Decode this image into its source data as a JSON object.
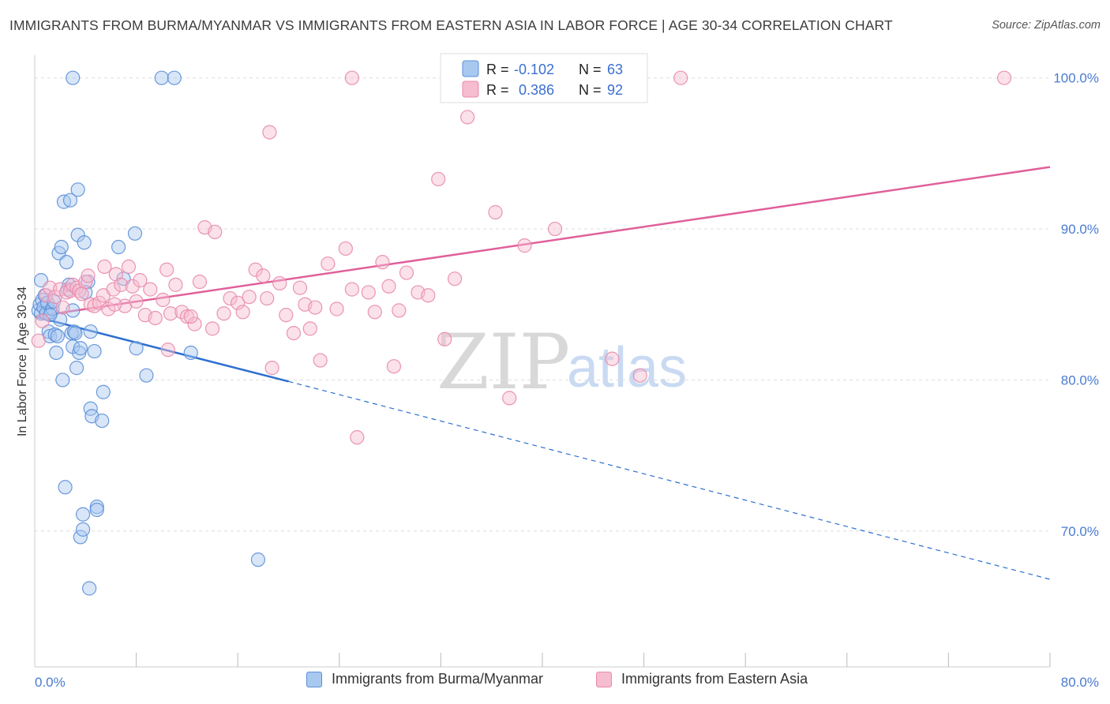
{
  "title": "IMMIGRANTS FROM BURMA/MYANMAR VS IMMIGRANTS FROM EASTERN ASIA IN LABOR FORCE | AGE 30-34 CORRELATION CHART",
  "source": "Source: ZipAtlas.com",
  "watermark": {
    "zip": "ZIP",
    "atlas": "atlas"
  },
  "colors": {
    "burma_fill": "#a9c8f0",
    "burma_stroke": "#5b8fd8",
    "burma_line": "#2d6fcf",
    "easia_fill": "#f6bcd0",
    "easia_stroke": "#e88aab",
    "easia_line": "#e0609a",
    "grid": "#dddddd",
    "axis_text": "#4a7bd1"
  },
  "legend": {
    "rows": [
      {
        "r_label": "R =",
        "r_value": "-0.102",
        "n_label": "N =",
        "n_value": "63"
      },
      {
        "r_label": "R =",
        "r_value": "0.386",
        "n_label": "N =",
        "n_value": "92"
      }
    ]
  },
  "bottom_legend": {
    "items": [
      {
        "label": "Immigrants from Burma/Myanmar"
      },
      {
        "label": "Immigrants from Eastern Asia"
      }
    ]
  },
  "chart_data": {
    "type": "scatter",
    "title": "IMMIGRANTS FROM BURMA/MYANMAR VS IMMIGRANTS FROM EASTERN ASIA IN LABOR FORCE | AGE 30-34 CORRELATION CHART",
    "ylabel": "In Labor Force | Age 30-34",
    "xlabel": "",
    "xlim": [
      0,
      80
    ],
    "ylim": [
      61,
      101.5
    ],
    "x_tick_labels": [
      {
        "value": 0,
        "label": "0.0%"
      },
      {
        "value": 80,
        "label": "80.0%"
      }
    ],
    "x_minor_ticks": [
      8,
      16,
      24,
      32,
      40,
      48,
      56,
      64,
      72
    ],
    "y_ticks": [
      {
        "value": 70,
        "label": "70.0%"
      },
      {
        "value": 80,
        "label": "80.0%"
      },
      {
        "value": 90,
        "label": "90.0%"
      },
      {
        "value": 100,
        "label": "100.0%"
      }
    ],
    "grid": true,
    "series": [
      {
        "name": "Immigrants from Burma/Myanmar",
        "stats": {
          "R": -0.102,
          "N": 63
        },
        "trend": {
          "x_start": 0,
          "y_start": 84.2,
          "x_solid_end": 20,
          "y_solid_end": 79.9,
          "x_end": 80,
          "y_end": 66.8
        },
        "points": [
          [
            0.3,
            84.6
          ],
          [
            0.4,
            85.0
          ],
          [
            0.5,
            84.4
          ],
          [
            0.5,
            86.6
          ],
          [
            0.6,
            85.3
          ],
          [
            0.7,
            84.8
          ],
          [
            0.8,
            85.6
          ],
          [
            0.9,
            84.4
          ],
          [
            1.0,
            85.1
          ],
          [
            1.1,
            83.2
          ],
          [
            1.2,
            82.9
          ],
          [
            1.3,
            84.5
          ],
          [
            1.4,
            84.7
          ],
          [
            1.5,
            85.2
          ],
          [
            1.6,
            83.0
          ],
          [
            1.7,
            81.8
          ],
          [
            1.8,
            82.9
          ],
          [
            2.0,
            84.0
          ],
          [
            1.9,
            88.4
          ],
          [
            2.1,
            88.8
          ],
          [
            2.2,
            80.0
          ],
          [
            2.3,
            91.8
          ],
          [
            2.5,
            87.8
          ],
          [
            2.8,
            91.9
          ],
          [
            2.6,
            86.0
          ],
          [
            2.7,
            86.3
          ],
          [
            2.9,
            83.1
          ],
          [
            3.0,
            82.2
          ],
          [
            3.0,
            84.6
          ],
          [
            3.1,
            83.2
          ],
          [
            3.2,
            83.1
          ],
          [
            3.3,
            80.8
          ],
          [
            3.4,
            89.6
          ],
          [
            3.4,
            92.6
          ],
          [
            3.5,
            81.8
          ],
          [
            3.6,
            82.1
          ],
          [
            3.9,
            89.1
          ],
          [
            4.2,
            86.5
          ],
          [
            4.4,
            83.2
          ],
          [
            4.4,
            78.1
          ],
          [
            4.5,
            77.6
          ],
          [
            4.7,
            81.9
          ],
          [
            4.9,
            71.6
          ],
          [
            4.9,
            71.4
          ],
          [
            5.3,
            77.3
          ],
          [
            5.4,
            79.2
          ],
          [
            3.8,
            71.1
          ],
          [
            3.6,
            69.6
          ],
          [
            3.8,
            70.1
          ],
          [
            4.3,
            66.2
          ],
          [
            2.4,
            72.9
          ],
          [
            3.0,
            100.0
          ],
          [
            6.6,
            88.8
          ],
          [
            7.0,
            86.7
          ],
          [
            7.9,
            89.7
          ],
          [
            8.0,
            82.1
          ],
          [
            8.8,
            80.3
          ],
          [
            10.0,
            100.0
          ],
          [
            11.0,
            100.0
          ],
          [
            12.3,
            81.8
          ],
          [
            17.6,
            68.1
          ],
          [
            4.0,
            85.8
          ],
          [
            1.2,
            84.3
          ]
        ]
      },
      {
        "name": "Immigrants from Eastern Asia",
        "stats": {
          "R": 0.386,
          "N": 92
        },
        "trend": {
          "x_start": 0,
          "y_start": 84.2,
          "x_end": 80,
          "y_end": 94.1
        },
        "points": [
          [
            0.3,
            82.6
          ],
          [
            0.6,
            83.9
          ],
          [
            0.9,
            85.6
          ],
          [
            1.2,
            86.1
          ],
          [
            1.6,
            85.5
          ],
          [
            2.0,
            86.0
          ],
          [
            2.2,
            84.8
          ],
          [
            2.5,
            85.8
          ],
          [
            2.8,
            85.9
          ],
          [
            3.0,
            86.3
          ],
          [
            3.3,
            86.1
          ],
          [
            3.5,
            85.9
          ],
          [
            3.7,
            85.7
          ],
          [
            4.0,
            86.5
          ],
          [
            4.2,
            86.9
          ],
          [
            4.4,
            85.0
          ],
          [
            4.7,
            84.9
          ],
          [
            5.1,
            85.1
          ],
          [
            5.4,
            85.6
          ],
          [
            5.5,
            87.5
          ],
          [
            5.8,
            84.7
          ],
          [
            6.2,
            86.0
          ],
          [
            6.4,
            87.0
          ],
          [
            6.8,
            86.3
          ],
          [
            7.1,
            84.9
          ],
          [
            7.4,
            87.5
          ],
          [
            7.7,
            86.2
          ],
          [
            8.0,
            85.2
          ],
          [
            8.3,
            86.6
          ],
          [
            8.7,
            84.3
          ],
          [
            9.1,
            86.0
          ],
          [
            9.5,
            84.1
          ],
          [
            10.1,
            85.3
          ],
          [
            10.4,
            87.3
          ],
          [
            10.7,
            84.4
          ],
          [
            11.1,
            86.3
          ],
          [
            11.6,
            84.5
          ],
          [
            12.0,
            84.2
          ],
          [
            12.6,
            83.7
          ],
          [
            13.0,
            86.5
          ],
          [
            13.4,
            90.1
          ],
          [
            14.2,
            89.8
          ],
          [
            14.0,
            83.4
          ],
          [
            14.9,
            84.4
          ],
          [
            15.4,
            85.4
          ],
          [
            16.0,
            85.1
          ],
          [
            16.4,
            84.5
          ],
          [
            16.9,
            85.5
          ],
          [
            17.4,
            87.3
          ],
          [
            18.0,
            86.9
          ],
          [
            18.3,
            85.4
          ],
          [
            18.7,
            80.8
          ],
          [
            19.3,
            86.4
          ],
          [
            19.8,
            84.3
          ],
          [
            20.4,
            83.1
          ],
          [
            20.9,
            86.1
          ],
          [
            21.3,
            85.0
          ],
          [
            21.7,
            83.4
          ],
          [
            22.1,
            84.8
          ],
          [
            22.5,
            81.3
          ],
          [
            23.1,
            87.7
          ],
          [
            23.8,
            84.7
          ],
          [
            24.5,
            88.7
          ],
          [
            25.0,
            86.0
          ],
          [
            25.4,
            76.2
          ],
          [
            26.3,
            85.8
          ],
          [
            26.8,
            84.5
          ],
          [
            27.4,
            87.8
          ],
          [
            27.9,
            86.2
          ],
          [
            28.3,
            80.9
          ],
          [
            28.7,
            84.6
          ],
          [
            29.3,
            87.1
          ],
          [
            30.2,
            85.8
          ],
          [
            31.0,
            85.6
          ],
          [
            31.8,
            93.3
          ],
          [
            32.3,
            82.7
          ],
          [
            33.1,
            86.7
          ],
          [
            34.1,
            97.4
          ],
          [
            36.3,
            91.1
          ],
          [
            37.4,
            78.8
          ],
          [
            38.6,
            88.9
          ],
          [
            41.0,
            90.0
          ],
          [
            45.5,
            81.4
          ],
          [
            47.7,
            80.3
          ],
          [
            25.0,
            100.0
          ],
          [
            34.5,
            100.0
          ],
          [
            50.9,
            100.0
          ],
          [
            76.4,
            100.0
          ],
          [
            18.5,
            96.4
          ],
          [
            6.3,
            85.0
          ],
          [
            10.5,
            82.0
          ],
          [
            12.3,
            84.2
          ]
        ]
      }
    ]
  }
}
